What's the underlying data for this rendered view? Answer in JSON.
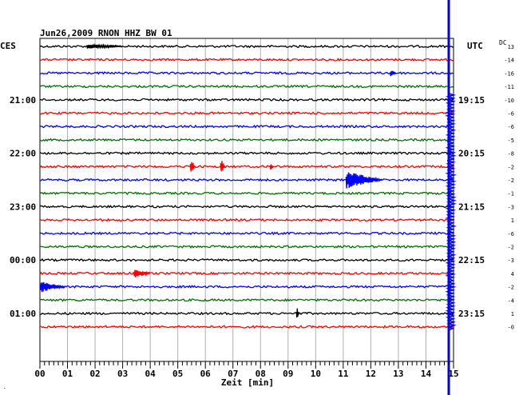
{
  "chart_data": {
    "type": "line",
    "title": "Jun26,2009  RNON HHZ BW 01",
    "left_header": "CES",
    "right_header": "UTC",
    "dc_header": "DC",
    "xlabel": "Zeit [min]",
    "xlim": [
      0,
      15
    ],
    "x_ticks": [
      "00",
      "01",
      "02",
      "03",
      "04",
      "05",
      "06",
      "07",
      "08",
      "09",
      "10",
      "11",
      "12",
      "13",
      "14",
      "15"
    ],
    "left_time_labels": [
      {
        "row": 4,
        "text": "21:00"
      },
      {
        "row": 8,
        "text": "22:00"
      },
      {
        "row": 12,
        "text": "23:00"
      },
      {
        "row": 16,
        "text": "00:00"
      },
      {
        "row": 20,
        "text": "01:00"
      }
    ],
    "right_time_labels": [
      {
        "row": 4,
        "text": "19:15"
      },
      {
        "row": 8,
        "text": "20:15"
      },
      {
        "row": 12,
        "text": "21:15"
      },
      {
        "row": 16,
        "text": "22:15"
      },
      {
        "row": 20,
        "text": "23:15"
      }
    ],
    "dc_offsets": [
      "13",
      "-14",
      "-16",
      "-11",
      "-10",
      "-6",
      "-6",
      "-5",
      "-8",
      "-2",
      "-2",
      "-1",
      "-3",
      "1",
      "-6",
      "-2",
      "-3",
      "4",
      "-2",
      "-4",
      "1",
      "-0"
    ],
    "trace_colors": [
      "#000000",
      "#ff0000",
      "#0000ff",
      "#007000"
    ],
    "row_count": 22,
    "events": [
      {
        "row": 0,
        "minute_start": 1.7,
        "minute_end": 3.0,
        "amplitude": 3
      },
      {
        "row": 2,
        "minute_start": 12.7,
        "minute_end": 12.9,
        "amplitude": 5
      },
      {
        "row": 9,
        "minute_start": 5.45,
        "minute_end": 5.6,
        "amplitude": 12
      },
      {
        "row": 9,
        "minute_start": 6.55,
        "minute_end": 6.7,
        "amplitude": 11
      },
      {
        "row": 9,
        "minute_start": 8.35,
        "minute_end": 8.45,
        "amplitude": 6
      },
      {
        "row": 10,
        "minute_start": 11.1,
        "minute_end": 12.4,
        "amplitude": 11
      },
      {
        "row": 17,
        "minute_start": 3.4,
        "minute_end": 4.0,
        "amplitude": 6
      },
      {
        "row": 18,
        "minute_start": 0.0,
        "minute_end": 0.9,
        "amplitude": 7
      },
      {
        "row": 20,
        "minute_start": 9.3,
        "minute_end": 9.4,
        "amplitude": 9
      }
    ],
    "end_event": {
      "minute_start": 14.8,
      "minute_end": 15.0,
      "from_row": 4,
      "to_row": 21
    }
  },
  "footer_mark": "."
}
